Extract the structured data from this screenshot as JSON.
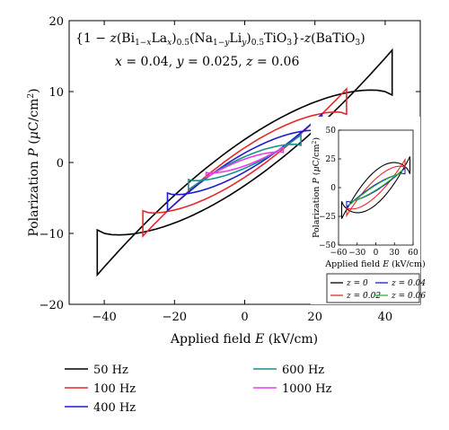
{
  "chart_data": [
    {
      "type": "line",
      "title": "",
      "xlabel": "Applied field E (kV/cm)",
      "ylabel": "Polarization P (μC/cm²)",
      "xlim": [
        -50,
        50
      ],
      "ylim": [
        -20,
        20
      ],
      "xticks": [
        "−40",
        "−20",
        "0",
        "20",
        "40"
      ],
      "yticks": [
        "20",
        "10",
        "0",
        "−10",
        "−20"
      ],
      "grid": false,
      "legend_position": "bottom",
      "annotations": [
        "{1 − z(Bi1−xLax)0.5(Na1−yLiy)0.5TiO3}-z(BaTiO3)",
        "x = 0.04, y = 0.025, z = 0.06"
      ],
      "series": [
        {
          "name": "50 Hz",
          "color": "#000000",
          "emax": 42,
          "pmax": 17,
          "pr": 7.5,
          "ec": 9
        },
        {
          "name": "100 Hz",
          "color": "#e8292a",
          "emax": 29,
          "pmax": 11.3,
          "pr": 4.5,
          "ec": 6
        },
        {
          "name": "400 Hz",
          "color": "#1c1cd1",
          "emax": 22,
          "pmax": 7.3,
          "pr": 3.0,
          "ec": 4.5
        },
        {
          "name": "600 Hz",
          "color": "#17928e",
          "emax": 16,
          "pmax": 4.2,
          "pr": 1.8,
          "ec": 3.5
        },
        {
          "name": "1000 Hz",
          "color": "#e63ee6",
          "emax": 11,
          "pmax": 2.4,
          "pr": 1.0,
          "ec": 2.5
        }
      ]
    },
    {
      "type": "line",
      "title": "",
      "xlabel": "Applied field E (kV/cm)",
      "ylabel": "Polarization P (μC/cm²)",
      "xlim": [
        -60,
        60
      ],
      "ylim": [
        -50,
        50
      ],
      "xticks": [
        "−60",
        "−30",
        "0",
        "30",
        "60"
      ],
      "yticks": [
        "50",
        "25",
        "0",
        "−25",
        "−50"
      ],
      "legend_position": "bottom",
      "series": [
        {
          "name": "z = 0",
          "color": "#000000",
          "emax": 55,
          "pmax": 42,
          "pr": 30,
          "ec": 25
        },
        {
          "name": "z = 0.02",
          "color": "#e8292a",
          "emax": 47,
          "pmax": 31,
          "pr": 14,
          "ec": 14
        },
        {
          "name": "z = 0.04",
          "color": "#1c1cd1",
          "emax": 47,
          "pmax": 18,
          "pr": 6,
          "ec": 8
        },
        {
          "name": "z = 0.06",
          "color": "#2db52d",
          "emax": 42,
          "pmax": 16,
          "pr": 4,
          "ec": 6
        }
      ]
    }
  ]
}
